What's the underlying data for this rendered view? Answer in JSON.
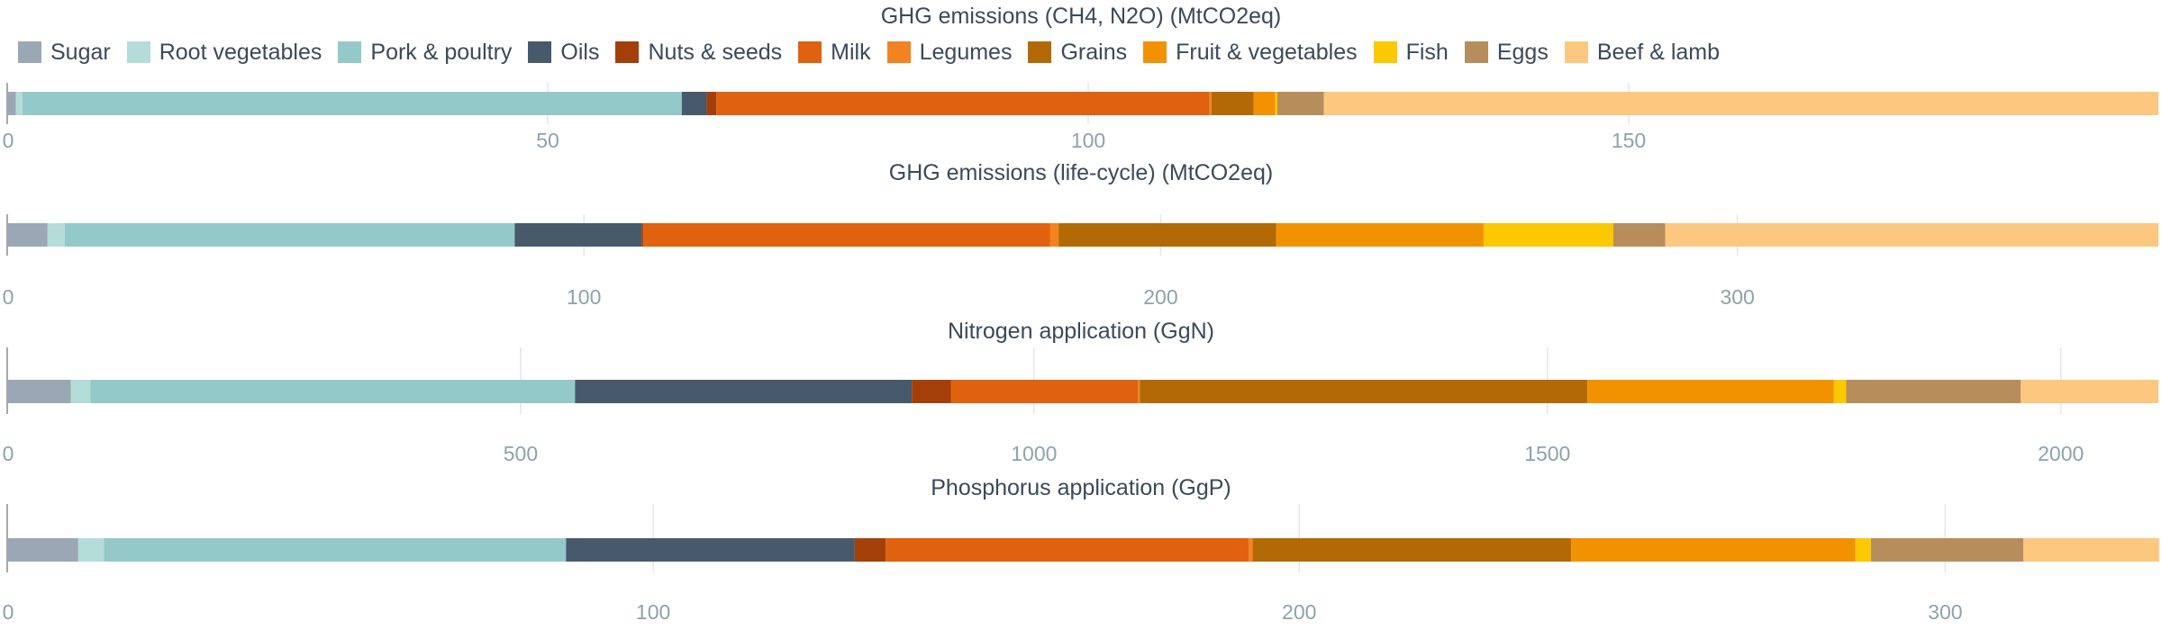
{
  "legend": [
    {
      "name": "Sugar",
      "color": "#9aa8b5"
    },
    {
      "name": "Root vegetables",
      "color": "#b4dcd8"
    },
    {
      "name": "Pork & poultry",
      "color": "#94c9c9"
    },
    {
      "name": "Oils",
      "color": "#465a6c"
    },
    {
      "name": "Nuts & seeds",
      "color": "#a43f0a"
    },
    {
      "name": "Milk",
      "color": "#e0610e"
    },
    {
      "name": "Legumes",
      "color": "#f58220"
    },
    {
      "name": "Grains",
      "color": "#b36a06"
    },
    {
      "name": "Fruit & vegetables",
      "color": "#f39200"
    },
    {
      "name": "Fish",
      "color": "#fcc800"
    },
    {
      "name": "Eggs",
      "color": "#b78e5b"
    },
    {
      "name": "Beef & lamb",
      "color": "#fcc77e"
    }
  ],
  "chart_data": [
    {
      "type": "bar",
      "orientation": "horizontal-stacked",
      "title": "GHG emissions (CH4, N2O) (MtCO2eq)",
      "xlim": [
        0,
        199
      ],
      "ticks": [
        0,
        50,
        100,
        150
      ],
      "series": [
        {
          "name": "Sugar",
          "value": 0.8
        },
        {
          "name": "Root vegetables",
          "value": 0.6
        },
        {
          "name": "Pork & poultry",
          "value": 61
        },
        {
          "name": "Oils",
          "value": 2.3
        },
        {
          "name": "Nuts & seeds",
          "value": 0.9
        },
        {
          "name": "Milk",
          "value": 45.6
        },
        {
          "name": "Legumes",
          "value": 0.2
        },
        {
          "name": "Grains",
          "value": 3.9
        },
        {
          "name": "Fruit & vegetables",
          "value": 2.0
        },
        {
          "name": "Fish",
          "value": 0.2
        },
        {
          "name": "Eggs",
          "value": 4.3
        },
        {
          "name": "Beef & lamb",
          "value": 77.2
        }
      ]
    },
    {
      "type": "bar",
      "orientation": "horizontal-stacked",
      "title": "GHG emissions (life-cycle) (MtCO2eq)",
      "xlim": [
        0,
        373
      ],
      "ticks": [
        0,
        100,
        200,
        300
      ],
      "series": [
        {
          "name": "Sugar",
          "value": 7
        },
        {
          "name": "Root vegetables",
          "value": 3
        },
        {
          "name": "Pork & poultry",
          "value": 78
        },
        {
          "name": "Oils",
          "value": 22
        },
        {
          "name": "Nuts & seeds",
          "value": 0.3
        },
        {
          "name": "Milk",
          "value": 70.5
        },
        {
          "name": "Legumes",
          "value": 1.5
        },
        {
          "name": "Grains",
          "value": 37.7
        },
        {
          "name": "Fruit & vegetables",
          "value": 36
        },
        {
          "name": "Fish",
          "value": 22.5
        },
        {
          "name": "Eggs",
          "value": 9
        },
        {
          "name": "Beef & lamb",
          "value": 85.5
        }
      ]
    },
    {
      "type": "bar",
      "orientation": "horizontal-stacked",
      "title": "Nitrogen application (GgN)",
      "xlim": [
        0,
        2095
      ],
      "ticks": [
        0,
        500,
        1000,
        1500,
        2000
      ],
      "series": [
        {
          "name": "Sugar",
          "value": 62
        },
        {
          "name": "Root vegetables",
          "value": 19
        },
        {
          "name": "Pork & poultry",
          "value": 472
        },
        {
          "name": "Oils",
          "value": 328
        },
        {
          "name": "Nuts & seeds",
          "value": 38
        },
        {
          "name": "Milk",
          "value": 182
        },
        {
          "name": "Legumes",
          "value": 2
        },
        {
          "name": "Grains",
          "value": 436
        },
        {
          "name": "Fruit & vegetables",
          "value": 240
        },
        {
          "name": "Fish",
          "value": 12
        },
        {
          "name": "Eggs",
          "value": 170
        },
        {
          "name": "Beef & lamb",
          "value": 134
        }
      ]
    },
    {
      "type": "bar",
      "orientation": "horizontal-stacked",
      "title": "Phosphorus application (GgP)",
      "xlim": [
        0,
        333
      ],
      "ticks": [
        0,
        100,
        200,
        300
      ],
      "series": [
        {
          "name": "Sugar",
          "value": 11
        },
        {
          "name": "Root vegetables",
          "value": 4
        },
        {
          "name": "Pork & poultry",
          "value": 71.5
        },
        {
          "name": "Oils",
          "value": 44.7
        },
        {
          "name": "Nuts & seeds",
          "value": 4.8
        },
        {
          "name": "Milk",
          "value": 56.2
        },
        {
          "name": "Legumes",
          "value": 0.6
        },
        {
          "name": "Grains",
          "value": 49.3
        },
        {
          "name": "Fruit & vegetables",
          "value": 44
        },
        {
          "name": "Fish",
          "value": 2.4
        },
        {
          "name": "Eggs",
          "value": 23.6
        },
        {
          "name": "Beef & lamb",
          "value": 21
        }
      ]
    }
  ]
}
